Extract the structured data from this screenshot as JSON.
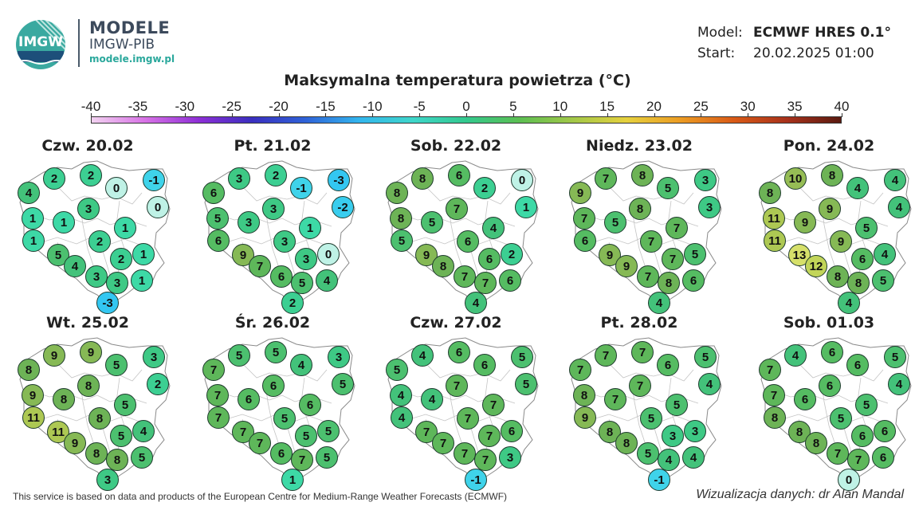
{
  "brand": {
    "title": "MODELE",
    "subtitle": "IMGW-PIB",
    "url": "modele.imgw.pl",
    "logo_text": "IMGW"
  },
  "model_info": {
    "model_label": "Model:",
    "model_value": "ECMWF HRES 0.1°",
    "start_label": "Start:",
    "start_value": "20.02.2025 01:00"
  },
  "title": "Maksymalna temperatura powietrza (°C)",
  "scale": {
    "labels": [
      "-40",
      "-35",
      "-30",
      "-25",
      "-20",
      "-15",
      "-10",
      "-5",
      "0",
      "5",
      "10",
      "15",
      "20",
      "25",
      "30",
      "35",
      "40"
    ],
    "colors": [
      "#f2d2f0",
      "#d873e6",
      "#8e2fd6",
      "#3a2fbf",
      "#2f63d8",
      "#33b6ee",
      "#3fd6ca",
      "#33c98e",
      "#5cbf52",
      "#a3c848",
      "#e6d13e",
      "#ec9c23",
      "#d95a17",
      "#a7311b",
      "#5a1a10"
    ]
  },
  "days": [
    {
      "title": "Czw. 20.02",
      "temps": [
        2,
        2,
        -1,
        4,
        0,
        0,
        3,
        1,
        1,
        1,
        1,
        2,
        5,
        2,
        1,
        4,
        3,
        3,
        1,
        -3
      ]
    },
    {
      "title": "Pt. 21.02",
      "temps": [
        3,
        2,
        -3,
        6,
        -1,
        -2,
        3,
        5,
        3,
        1,
        6,
        3,
        9,
        3,
        0,
        7,
        6,
        5,
        4,
        2
      ]
    },
    {
      "title": "Sob. 22.02",
      "temps": [
        8,
        6,
        0,
        8,
        2,
        1,
        7,
        8,
        5,
        4,
        5,
        6,
        9,
        6,
        2,
        8,
        7,
        7,
        6,
        4
      ]
    },
    {
      "title": "Niedz. 23.02",
      "temps": [
        7,
        8,
        3,
        9,
        5,
        3,
        8,
        7,
        5,
        7,
        6,
        7,
        9,
        7,
        5,
        9,
        7,
        8,
        6,
        4
      ]
    },
    {
      "title": "Pon. 24.02",
      "temps": [
        10,
        8,
        4,
        8,
        4,
        4,
        9,
        11,
        9,
        5,
        11,
        9,
        13,
        6,
        4,
        12,
        8,
        8,
        5,
        4
      ]
    },
    {
      "title": "Wt. 25.02",
      "temps": [
        9,
        9,
        3,
        8,
        5,
        2,
        8,
        9,
        8,
        5,
        11,
        8,
        11,
        5,
        4,
        9,
        8,
        8,
        5,
        3
      ]
    },
    {
      "title": "Śr. 26.02",
      "temps": [
        5,
        5,
        3,
        7,
        4,
        5,
        6,
        7,
        6,
        6,
        7,
        5,
        7,
        5,
        5,
        7,
        6,
        7,
        5,
        1
      ]
    },
    {
      "title": "Czw. 27.02",
      "temps": [
        4,
        6,
        5,
        5,
        6,
        5,
        7,
        4,
        4,
        7,
        4,
        7,
        7,
        7,
        6,
        7,
        7,
        7,
        3,
        -1
      ]
    },
    {
      "title": "Pt. 28.02",
      "temps": [
        7,
        7,
        5,
        7,
        6,
        4,
        7,
        8,
        7,
        5,
        9,
        5,
        8,
        3,
        3,
        8,
        5,
        4,
        4,
        -1
      ]
    },
    {
      "title": "Sob. 01.03",
      "temps": [
        4,
        6,
        5,
        7,
        6,
        4,
        6,
        7,
        6,
        5,
        8,
        5,
        8,
        6,
        6,
        8,
        7,
        7,
        6,
        0
      ]
    }
  ],
  "footer": "This service is based on data and products of the European Centre for Medium-Range Weather Forecasts (ECMWF)",
  "credit": "Wizualizacja danych: dr Alan Mandal"
}
